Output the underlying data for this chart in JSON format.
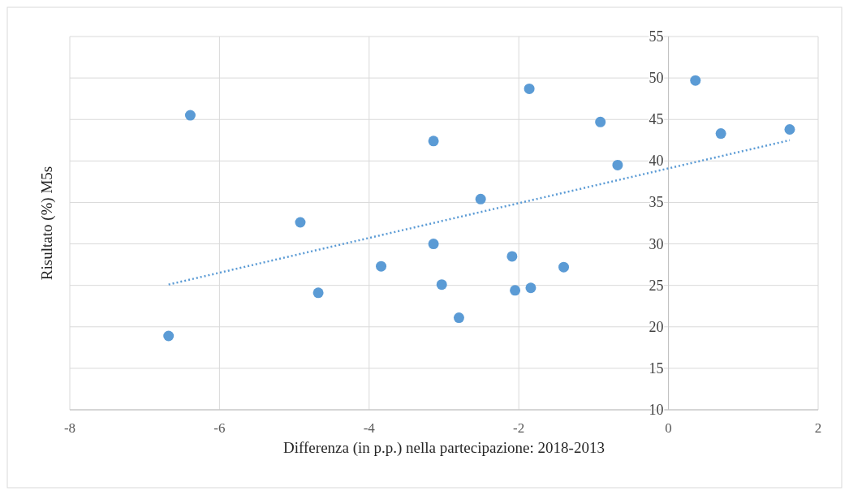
{
  "chart_data": {
    "type": "scatter",
    "xlabel": "Differenza (in p.p.) nella partecipazione: 2018-2013",
    "ylabel": "Risultato (%) M5s",
    "xlim": [
      -8,
      2
    ],
    "xticks": [
      -8,
      -6,
      -4,
      -2,
      0,
      2
    ],
    "ylim": [
      10,
      55
    ],
    "yticks": [
      10,
      15,
      20,
      25,
      30,
      35,
      40,
      45,
      50,
      55
    ],
    "grid": true,
    "series": [
      {
        "color": "#5b9bd5",
        "marker": "circle",
        "x": [
          -6.39,
          -6.68,
          -4.92,
          -4.68,
          -3.84,
          -3.14,
          -3.14,
          -3.03,
          -2.8,
          -2.51,
          -2.09,
          -2.05,
          -1.86,
          -1.84,
          -1.4,
          -0.91,
          -0.68,
          0.36,
          0.7,
          1.62
        ],
        "values": [
          45.5,
          18.9,
          32.6,
          24.1,
          27.3,
          42.4,
          30,
          25.1,
          21.1,
          35.4,
          28.5,
          24.4,
          48.7,
          24.7,
          27.2,
          44.7,
          39.5,
          49.7,
          43.3,
          43.8
        ]
      },
      {
        "type": "line",
        "color": "#5b9bd5",
        "marker": "none",
        "line_style": "dotted",
        "x": [
          -6.68,
          1.62
        ],
        "values": [
          25.1,
          42.5
        ]
      }
    ]
  }
}
